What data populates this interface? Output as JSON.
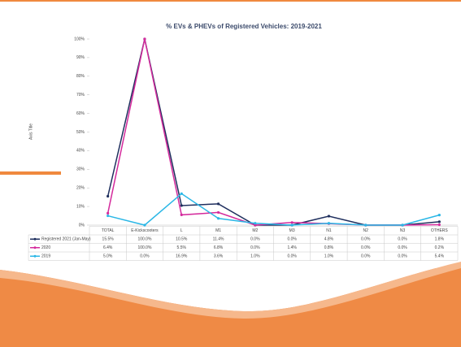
{
  "chart_data": {
    "type": "line",
    "title": "% EVs & PHEVs of Registered Vehicles: 2019-2021",
    "y_axis_label": "Axis Title",
    "categories": [
      "TOTAL",
      "E-Kickscooters",
      "L",
      "M1",
      "M2",
      "M3",
      "N1",
      "N2",
      "N3",
      "OTHERS"
    ],
    "series": [
      {
        "name": "Registered 2021 (Jan-May)",
        "color": "#1f2f5e",
        "values": [
          15.5,
          100.0,
          10.5,
          11.4,
          0.0,
          0.0,
          4.8,
          0.0,
          0.0,
          1.8
        ],
        "value_labels": [
          "15.5%",
          "100.0%",
          "10.5%",
          "11.4%",
          "0.0%",
          "0.0%",
          "4.8%",
          "0.0%",
          "0.0%",
          "1.8%"
        ]
      },
      {
        "name": "2020",
        "color": "#d42a9c",
        "values": [
          6.4,
          100.0,
          5.5,
          6.8,
          0.0,
          1.4,
          0.8,
          0.0,
          0.0,
          0.2
        ],
        "value_labels": [
          "6.4%",
          "100.0%",
          "5.5%",
          "6.8%",
          "0.0%",
          "1.4%",
          "0.8%",
          "0.0%",
          "0.0%",
          "0.2%"
        ]
      },
      {
        "name": "2019",
        "color": "#2bb7e6",
        "values": [
          5.0,
          0.0,
          16.9,
          3.6,
          1.0,
          0.0,
          1.0,
          0.0,
          0.0,
          5.4
        ],
        "value_labels": [
          "5.0%",
          "0.0%",
          "16.9%",
          "3.6%",
          "1.0%",
          "0.0%",
          "1.0%",
          "0.0%",
          "0.0%",
          "5.4%"
        ]
      }
    ],
    "ylim": [
      0,
      100
    ],
    "yticks": [
      {
        "value": 0,
        "label": "0%"
      },
      {
        "value": 10,
        "label": "10%"
      },
      {
        "value": 20,
        "label": "20%"
      },
      {
        "value": 30,
        "label": "30%"
      },
      {
        "value": 40,
        "label": "40%"
      },
      {
        "value": 50,
        "label": "50%"
      },
      {
        "value": 60,
        "label": "60%"
      },
      {
        "value": 70,
        "label": "70%"
      },
      {
        "value": 80,
        "label": "80%"
      },
      {
        "value": 90,
        "label": "90%"
      },
      {
        "value": 100,
        "label": "100%"
      }
    ],
    "grid": false
  }
}
